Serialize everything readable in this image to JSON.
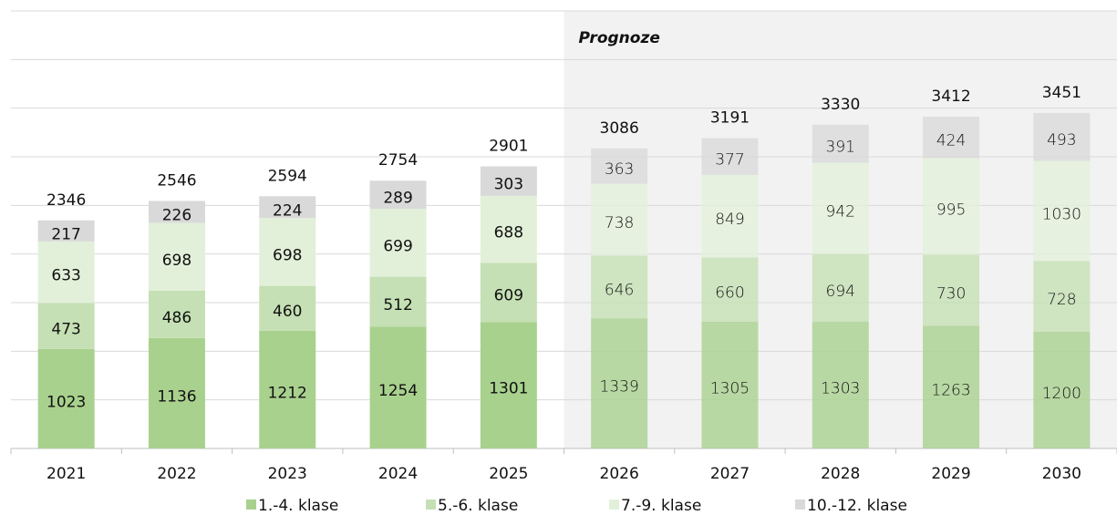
{
  "chart_data": {
    "type": "stacked_bar",
    "categories": [
      "2021",
      "2022",
      "2023",
      "2024",
      "2025",
      "2026",
      "2027",
      "2028",
      "2029",
      "2030"
    ],
    "series": [
      {
        "name": "1.-4. klase",
        "color": "#a9d18e",
        "values": [
          1023,
          1136,
          1212,
          1254,
          1301,
          1339,
          1305,
          1303,
          1263,
          1200
        ]
      },
      {
        "name": "5.-6. klase",
        "color": "#c5e0b4",
        "values": [
          473,
          486,
          460,
          512,
          609,
          646,
          660,
          694,
          730,
          728
        ]
      },
      {
        "name": "7.-9. klase",
        "color": "#e2f0d9",
        "values": [
          633,
          698,
          698,
          699,
          688,
          738,
          849,
          942,
          995,
          1030
        ]
      },
      {
        "name": "10.-12. klase",
        "color": "#d9d9d9",
        "values": [
          217,
          226,
          224,
          289,
          303,
          363,
          377,
          391,
          424,
          493
        ]
      }
    ],
    "totals": [
      2346,
      2546,
      2594,
      2754,
      2901,
      3086,
      3191,
      3330,
      3412,
      3451
    ],
    "forecast": {
      "label": "Prognoze",
      "from": "2026"
    },
    "ylim": [
      0,
      4500
    ],
    "yticks": [
      0,
      500,
      1000,
      1500,
      2000,
      2500,
      3000,
      3500,
      4000,
      4500
    ],
    "grid": true,
    "legend": "bottom"
  }
}
